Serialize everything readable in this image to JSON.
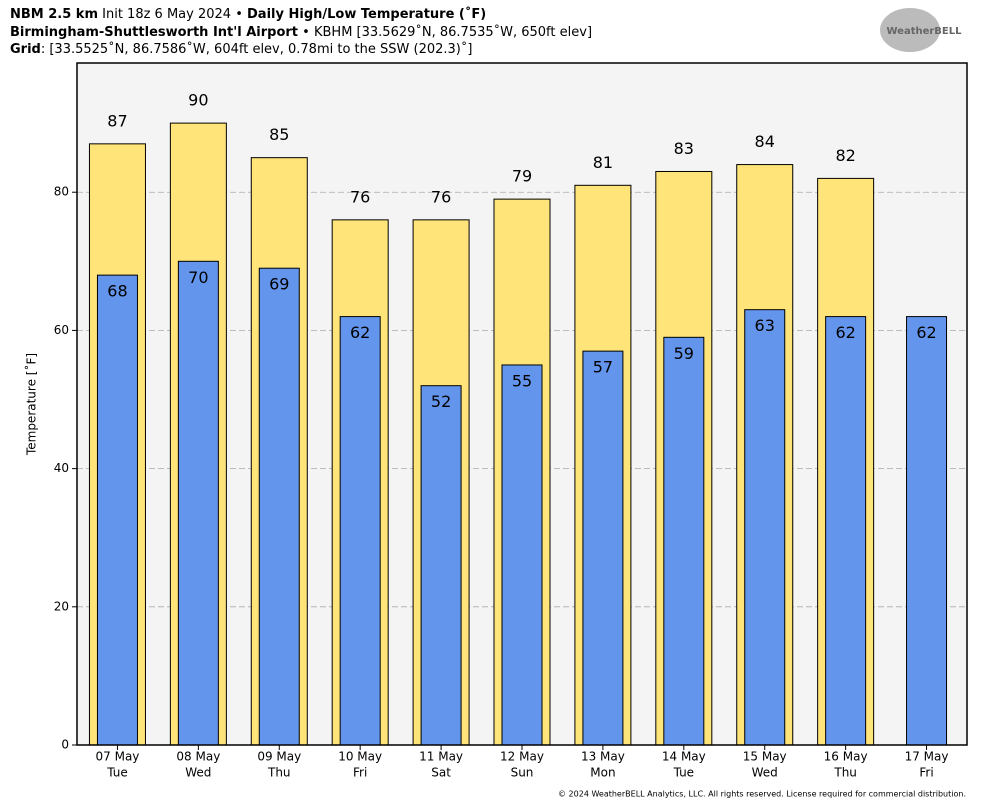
{
  "chart_data": {
    "type": "bar",
    "title": [
      [
        "NBM 2.5 km",
        "Init 18z 6 May 2024",
        "•",
        "Daily High/Low Temperature (˚F)"
      ],
      [
        "Birmingham-Shuttlesworth Int'l Airport",
        "•",
        "KBHM [33.5629˚N, 86.7535˚W, 650ft elev]"
      ],
      [
        "Grid",
        ": [33.5525˚N, 86.7586˚W, 604ft elev, 0.78mi to the SSW (202.3)˚]"
      ]
    ],
    "logo": "WeatherBELL",
    "footer": "© 2024 WeatherBELL Analytics, LLC. All rights reserved. License required for commercial distribution.",
    "ylabel": "Temperature [˚F]",
    "categories": [
      "07 May",
      "08 May",
      "09 May",
      "10 May",
      "11 May",
      "12 May",
      "13 May",
      "14 May",
      "15 May",
      "16 May",
      "17 May"
    ],
    "weekdays": [
      "Tue",
      "Wed",
      "Thu",
      "Fri",
      "Sat",
      "Sun",
      "Mon",
      "Tue",
      "Wed",
      "Thu",
      "Fri"
    ],
    "series": [
      {
        "color": "#ffe47a",
        "values": [
          87,
          90,
          85,
          76,
          76,
          79,
          81,
          83,
          84,
          82,
          null
        ]
      },
      {
        "color": "#6495ed",
        "values": [
          68,
          70,
          69,
          62,
          52,
          55,
          57,
          59,
          63,
          62,
          62
        ]
      }
    ],
    "ylim": [
      0,
      98.7
    ],
    "yticks": [
      0,
      20,
      40,
      60,
      80
    ],
    "grid": true
  }
}
